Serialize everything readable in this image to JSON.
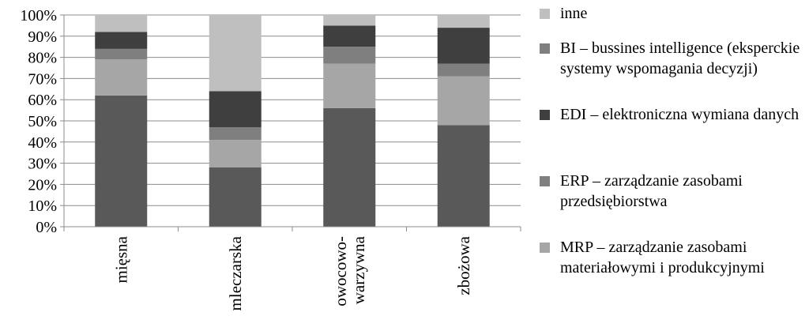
{
  "chart_data": {
    "type": "bar",
    "stacked": true,
    "categories": [
      [
        "mięsna"
      ],
      [
        "mleczarska"
      ],
      [
        "owocowo-",
        "warzywna"
      ],
      [
        "zbożowa"
      ]
    ],
    "y_ticks": [
      "0%",
      "10%",
      "20%",
      "30%",
      "40%",
      "50%",
      "60%",
      "70%",
      "80%",
      "90%",
      "100%"
    ],
    "ylim": [
      0,
      100
    ],
    "grid": true,
    "legend_position": "right",
    "series": [
      {
        "name": "MRP – zarządzanie zasobami materiałowymi i produkcyjnymi",
        "color": "#595959",
        "values": [
          62,
          28,
          56,
          48
        ]
      },
      {
        "name": "ERP – zarządzanie zasobami przedsiębiorstwa",
        "color": "#a6a6a6",
        "values": [
          17,
          13,
          21,
          23
        ]
      },
      {
        "name": "BI – bussines intelligence (eksperckie systemy wspomagania decyzji)",
        "color": "#7f7f7f",
        "values": [
          5,
          6,
          8,
          6
        ]
      },
      {
        "name": "EDI – elektroniczna wymiana danych",
        "color": "#3f3f3f",
        "values": [
          8,
          17,
          10,
          17
        ]
      },
      {
        "name": "inne",
        "color": "#bfbfbf",
        "values": [
          8,
          36,
          5,
          6
        ]
      }
    ]
  },
  "legend": [
    {
      "text": "inne",
      "color": "#bfbfbf"
    },
    {
      "text": "BI – bussines intelligence (eksperckie systemy wspomagania decyzji)",
      "color": "#7f7f7f"
    },
    {
      "text": "EDI – elektroniczna wymiana danych",
      "color": "#3f3f3f"
    },
    {
      "text": "ERP – zarządzanie zasobami przedsiębiorstwa",
      "color": "#808080"
    },
    {
      "text": "MRP – zarządzanie zasobami materiałowymi i produkcyjnymi",
      "color": "#a6a6a6"
    }
  ]
}
